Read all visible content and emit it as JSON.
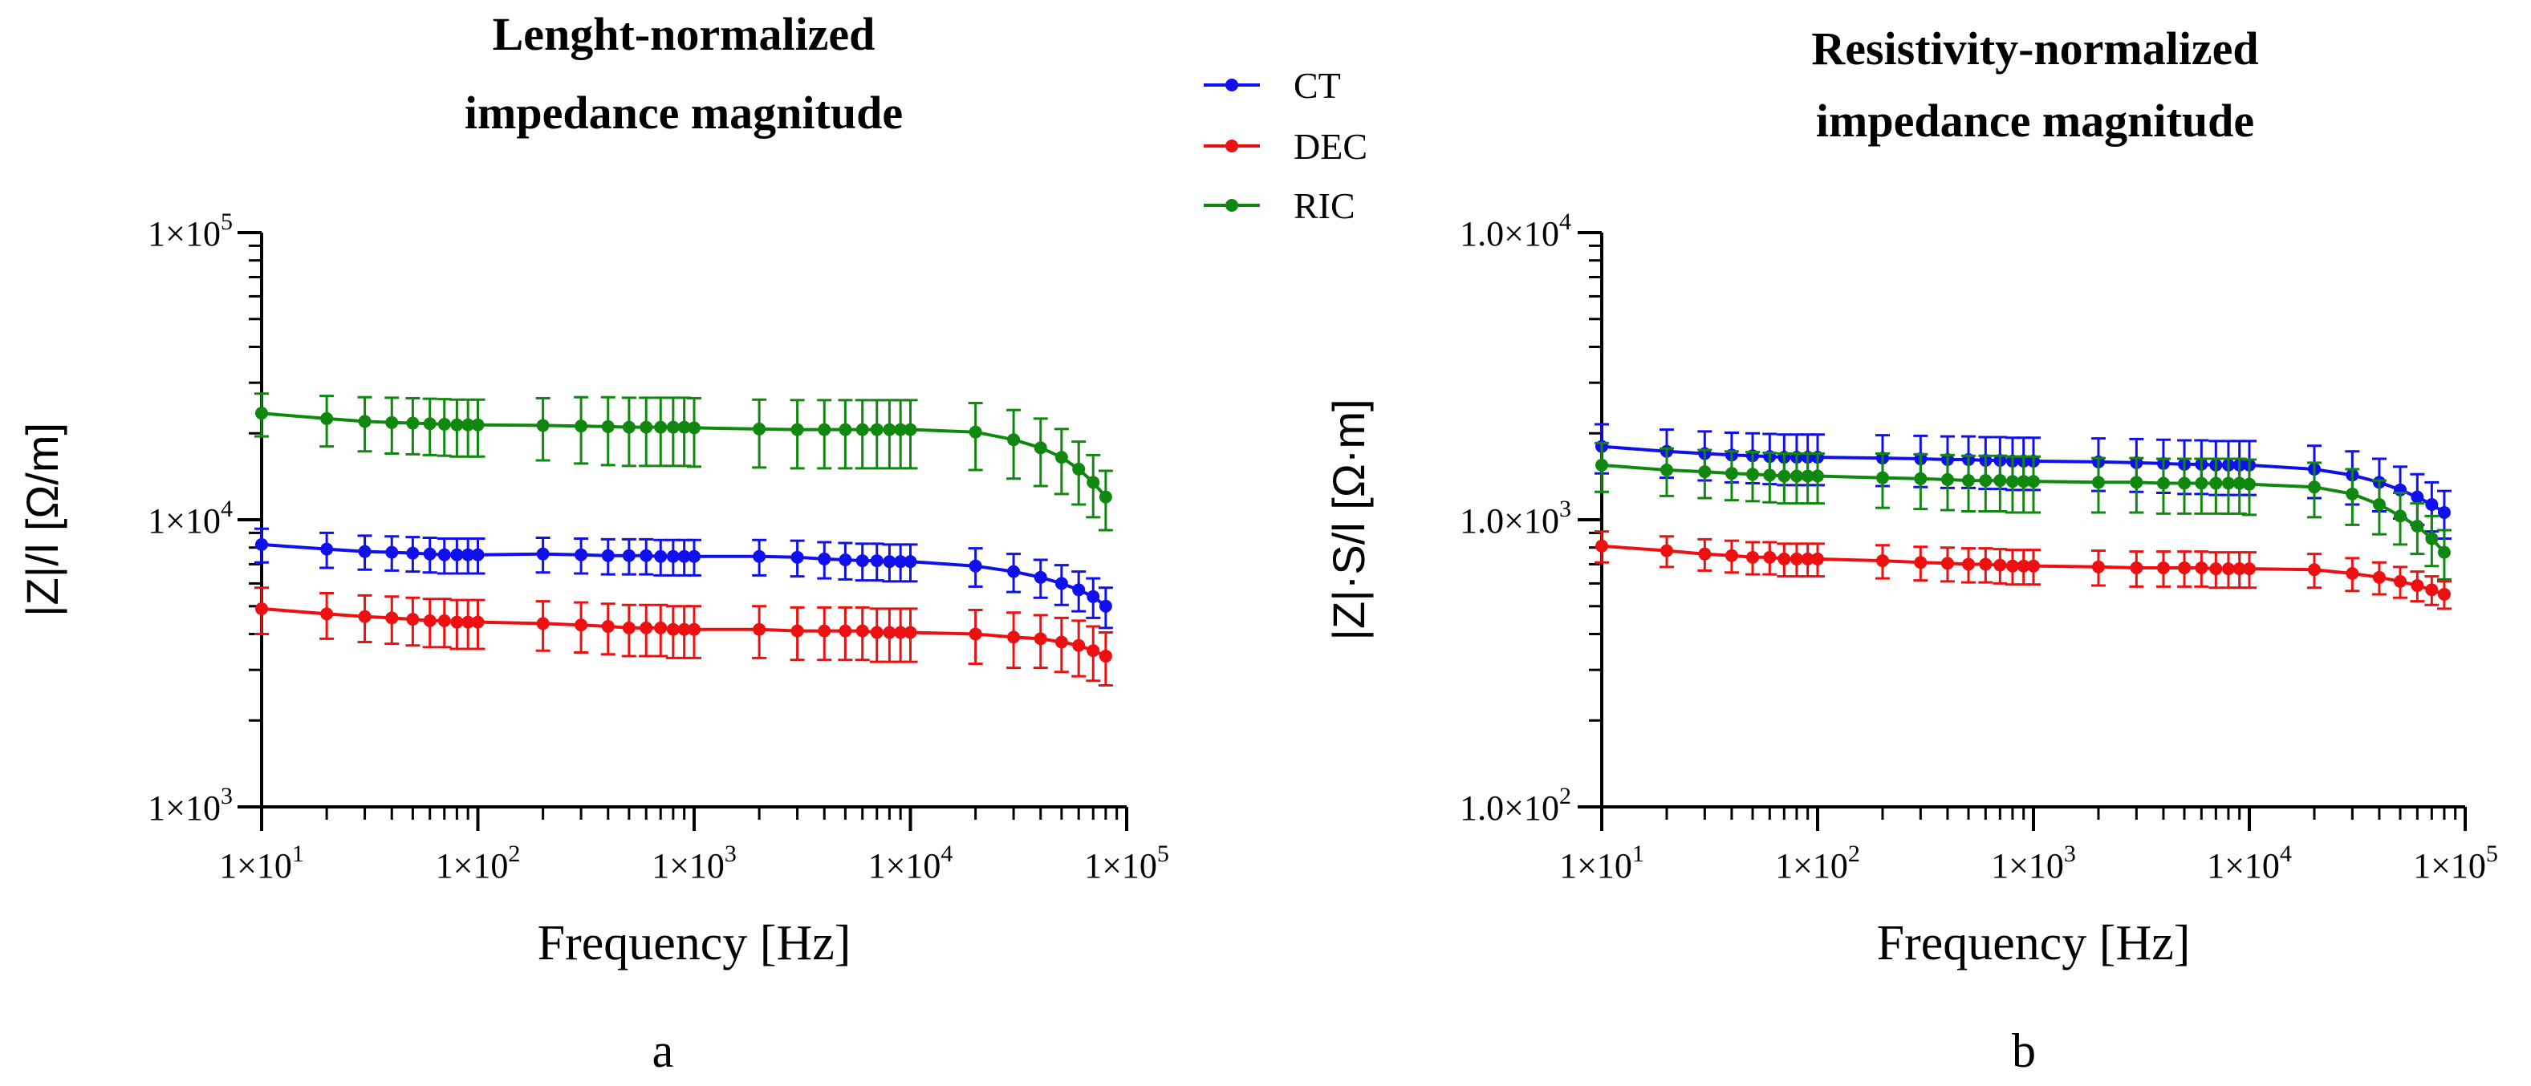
{
  "legend": {
    "items": [
      {
        "name": "CT",
        "color": "#1010ee"
      },
      {
        "name": "DEC",
        "color": "#ee1010"
      },
      {
        "name": "RIC",
        "color": "#108810"
      }
    ]
  },
  "chart_data": [
    {
      "type": "line",
      "panel_label": "a",
      "title": [
        "Lenght-normalized",
        "impedance magnitude"
      ],
      "xlabel": "Frequency [Hz]",
      "ylabel": "|Z|/l [Ω/m]",
      "xscale": "log",
      "yscale": "log",
      "xlim": [
        10,
        100000
      ],
      "ylim": [
        1000,
        100000
      ],
      "x_ticks": [
        {
          "mant": "1×10",
          "exp": "1"
        },
        {
          "mant": "1×10",
          "exp": "2"
        },
        {
          "mant": "1×10",
          "exp": "3"
        },
        {
          "mant": "1×10",
          "exp": "4"
        },
        {
          "mant": "1×10",
          "exp": "5"
        }
      ],
      "y_ticks": [
        {
          "mant": "1×10",
          "exp": "3"
        },
        {
          "mant": "1×10",
          "exp": "4"
        },
        {
          "mant": "1×10",
          "exp": "5"
        }
      ],
      "x": [
        10,
        20,
        30,
        40,
        50,
        60,
        70,
        80,
        90,
        100,
        200,
        300,
        400,
        500,
        600,
        700,
        800,
        900,
        1000,
        2000,
        3000,
        4000,
        5000,
        6000,
        7000,
        8000,
        9000,
        10000,
        20000,
        30000,
        40000,
        50000,
        60000,
        70000,
        80000
      ],
      "series": [
        {
          "name": "CT",
          "color": "#1010ee",
          "values": [
            8200,
            7900,
            7750,
            7700,
            7650,
            7600,
            7550,
            7550,
            7550,
            7550,
            7600,
            7550,
            7500,
            7500,
            7500,
            7450,
            7450,
            7450,
            7450,
            7450,
            7400,
            7300,
            7250,
            7200,
            7200,
            7150,
            7150,
            7150,
            6900,
            6600,
            6300,
            6000,
            5700,
            5400,
            5000
          ],
          "errors": [
            1100,
            1100,
            1050,
            1050,
            1050,
            1050,
            1050,
            1050,
            1050,
            1050,
            1050,
            1050,
            1050,
            1050,
            1050,
            1050,
            1050,
            1050,
            1050,
            1050,
            1050,
            1050,
            1050,
            1050,
            1050,
            1050,
            1050,
            1050,
            1050,
            1000,
            950,
            950,
            900,
            850,
            800
          ]
        },
        {
          "name": "DEC",
          "color": "#ee1010",
          "values": [
            4900,
            4700,
            4600,
            4550,
            4500,
            4450,
            4450,
            4400,
            4400,
            4400,
            4350,
            4300,
            4250,
            4200,
            4200,
            4200,
            4150,
            4150,
            4150,
            4150,
            4100,
            4100,
            4100,
            4100,
            4050,
            4050,
            4050,
            4050,
            4000,
            3900,
            3850,
            3750,
            3650,
            3500,
            3350
          ],
          "errors": [
            900,
            850,
            850,
            850,
            850,
            850,
            850,
            850,
            850,
            850,
            850,
            850,
            850,
            850,
            850,
            850,
            850,
            850,
            850,
            850,
            850,
            850,
            850,
            850,
            850,
            850,
            850,
            850,
            850,
            850,
            800,
            800,
            800,
            750,
            700
          ]
        },
        {
          "name": "RIC",
          "color": "#108810",
          "values": [
            23500,
            22500,
            22000,
            21800,
            21700,
            21600,
            21500,
            21400,
            21400,
            21400,
            21300,
            21200,
            21100,
            21000,
            21000,
            21000,
            21000,
            21000,
            20900,
            20700,
            20600,
            20600,
            20600,
            20600,
            20600,
            20600,
            20600,
            20600,
            20200,
            19000,
            17800,
            16500,
            15000,
            13500,
            12000
          ],
          "errors": [
            4000,
            4500,
            4700,
            4800,
            4800,
            4800,
            4800,
            4800,
            4800,
            4800,
            5200,
            5500,
            5600,
            5600,
            5600,
            5600,
            5600,
            5600,
            5600,
            5500,
            5500,
            5500,
            5500,
            5500,
            5500,
            5500,
            5500,
            5500,
            5300,
            5100,
            4700,
            4200,
            3700,
            3300,
            2800
          ]
        }
      ]
    },
    {
      "type": "line",
      "panel_label": "b",
      "title": [
        "Resistivity-normalized",
        "impedance magnitude"
      ],
      "xlabel": "Frequency [Hz]",
      "ylabel": "|Z|·S/l [Ω·m]",
      "xscale": "log",
      "yscale": "log",
      "xlim": [
        10,
        100000
      ],
      "ylim": [
        100,
        10000
      ],
      "x_ticks": [
        {
          "mant": "1×10",
          "exp": "1"
        },
        {
          "mant": "1×10",
          "exp": "2"
        },
        {
          "mant": "1×10",
          "exp": "3"
        },
        {
          "mant": "1×10",
          "exp": "4"
        },
        {
          "mant": "1×10",
          "exp": "5"
        }
      ],
      "y_ticks": [
        {
          "mant": "1.0×10",
          "exp": "2"
        },
        {
          "mant": "1.0×10",
          "exp": "3"
        },
        {
          "mant": "1.0×10",
          "exp": "4"
        }
      ],
      "x": [
        10,
        20,
        30,
        40,
        50,
        60,
        70,
        80,
        90,
        100,
        200,
        300,
        400,
        500,
        600,
        700,
        800,
        900,
        1000,
        2000,
        3000,
        4000,
        5000,
        6000,
        7000,
        8000,
        9000,
        10000,
        20000,
        30000,
        40000,
        50000,
        60000,
        70000,
        80000
      ],
      "series": [
        {
          "name": "CT",
          "color": "#1010ee",
          "values": [
            1800,
            1730,
            1700,
            1680,
            1670,
            1660,
            1650,
            1650,
            1650,
            1650,
            1640,
            1630,
            1620,
            1620,
            1610,
            1610,
            1600,
            1600,
            1600,
            1590,
            1580,
            1570,
            1560,
            1560,
            1550,
            1550,
            1550,
            1550,
            1500,
            1430,
            1350,
            1270,
            1200,
            1130,
            1060
          ],
          "errors": [
            350,
            330,
            330,
            330,
            330,
            330,
            330,
            330,
            330,
            330,
            330,
            330,
            330,
            330,
            330,
            330,
            330,
            330,
            330,
            330,
            330,
            330,
            330,
            330,
            330,
            330,
            330,
            330,
            310,
            300,
            280,
            260,
            240,
            220,
            200
          ]
        },
        {
          "name": "DEC",
          "color": "#ee1010",
          "values": [
            810,
            780,
            760,
            750,
            740,
            740,
            730,
            730,
            730,
            730,
            720,
            710,
            705,
            700,
            700,
            695,
            690,
            690,
            690,
            685,
            680,
            680,
            680,
            680,
            675,
            675,
            675,
            675,
            670,
            650,
            630,
            610,
            590,
            570,
            550
          ],
          "errors": [
            100,
            95,
            95,
            95,
            95,
            95,
            95,
            95,
            95,
            95,
            95,
            95,
            95,
            95,
            95,
            95,
            95,
            95,
            95,
            95,
            95,
            95,
            95,
            95,
            95,
            95,
            95,
            95,
            90,
            85,
            80,
            75,
            70,
            65,
            60
          ]
        },
        {
          "name": "RIC",
          "color": "#108810",
          "values": [
            1550,
            1490,
            1470,
            1450,
            1440,
            1430,
            1420,
            1420,
            1420,
            1420,
            1400,
            1390,
            1380,
            1370,
            1370,
            1370,
            1360,
            1360,
            1360,
            1350,
            1350,
            1340,
            1340,
            1340,
            1340,
            1340,
            1340,
            1330,
            1300,
            1230,
            1130,
            1030,
            950,
            860,
            770
          ],
          "errors": [
            300,
            280,
            280,
            280,
            280,
            280,
            280,
            280,
            280,
            280,
            300,
            300,
            300,
            300,
            300,
            300,
            300,
            300,
            300,
            290,
            290,
            290,
            290,
            290,
            290,
            290,
            290,
            290,
            280,
            270,
            240,
            210,
            190,
            170,
            150
          ]
        }
      ]
    }
  ]
}
